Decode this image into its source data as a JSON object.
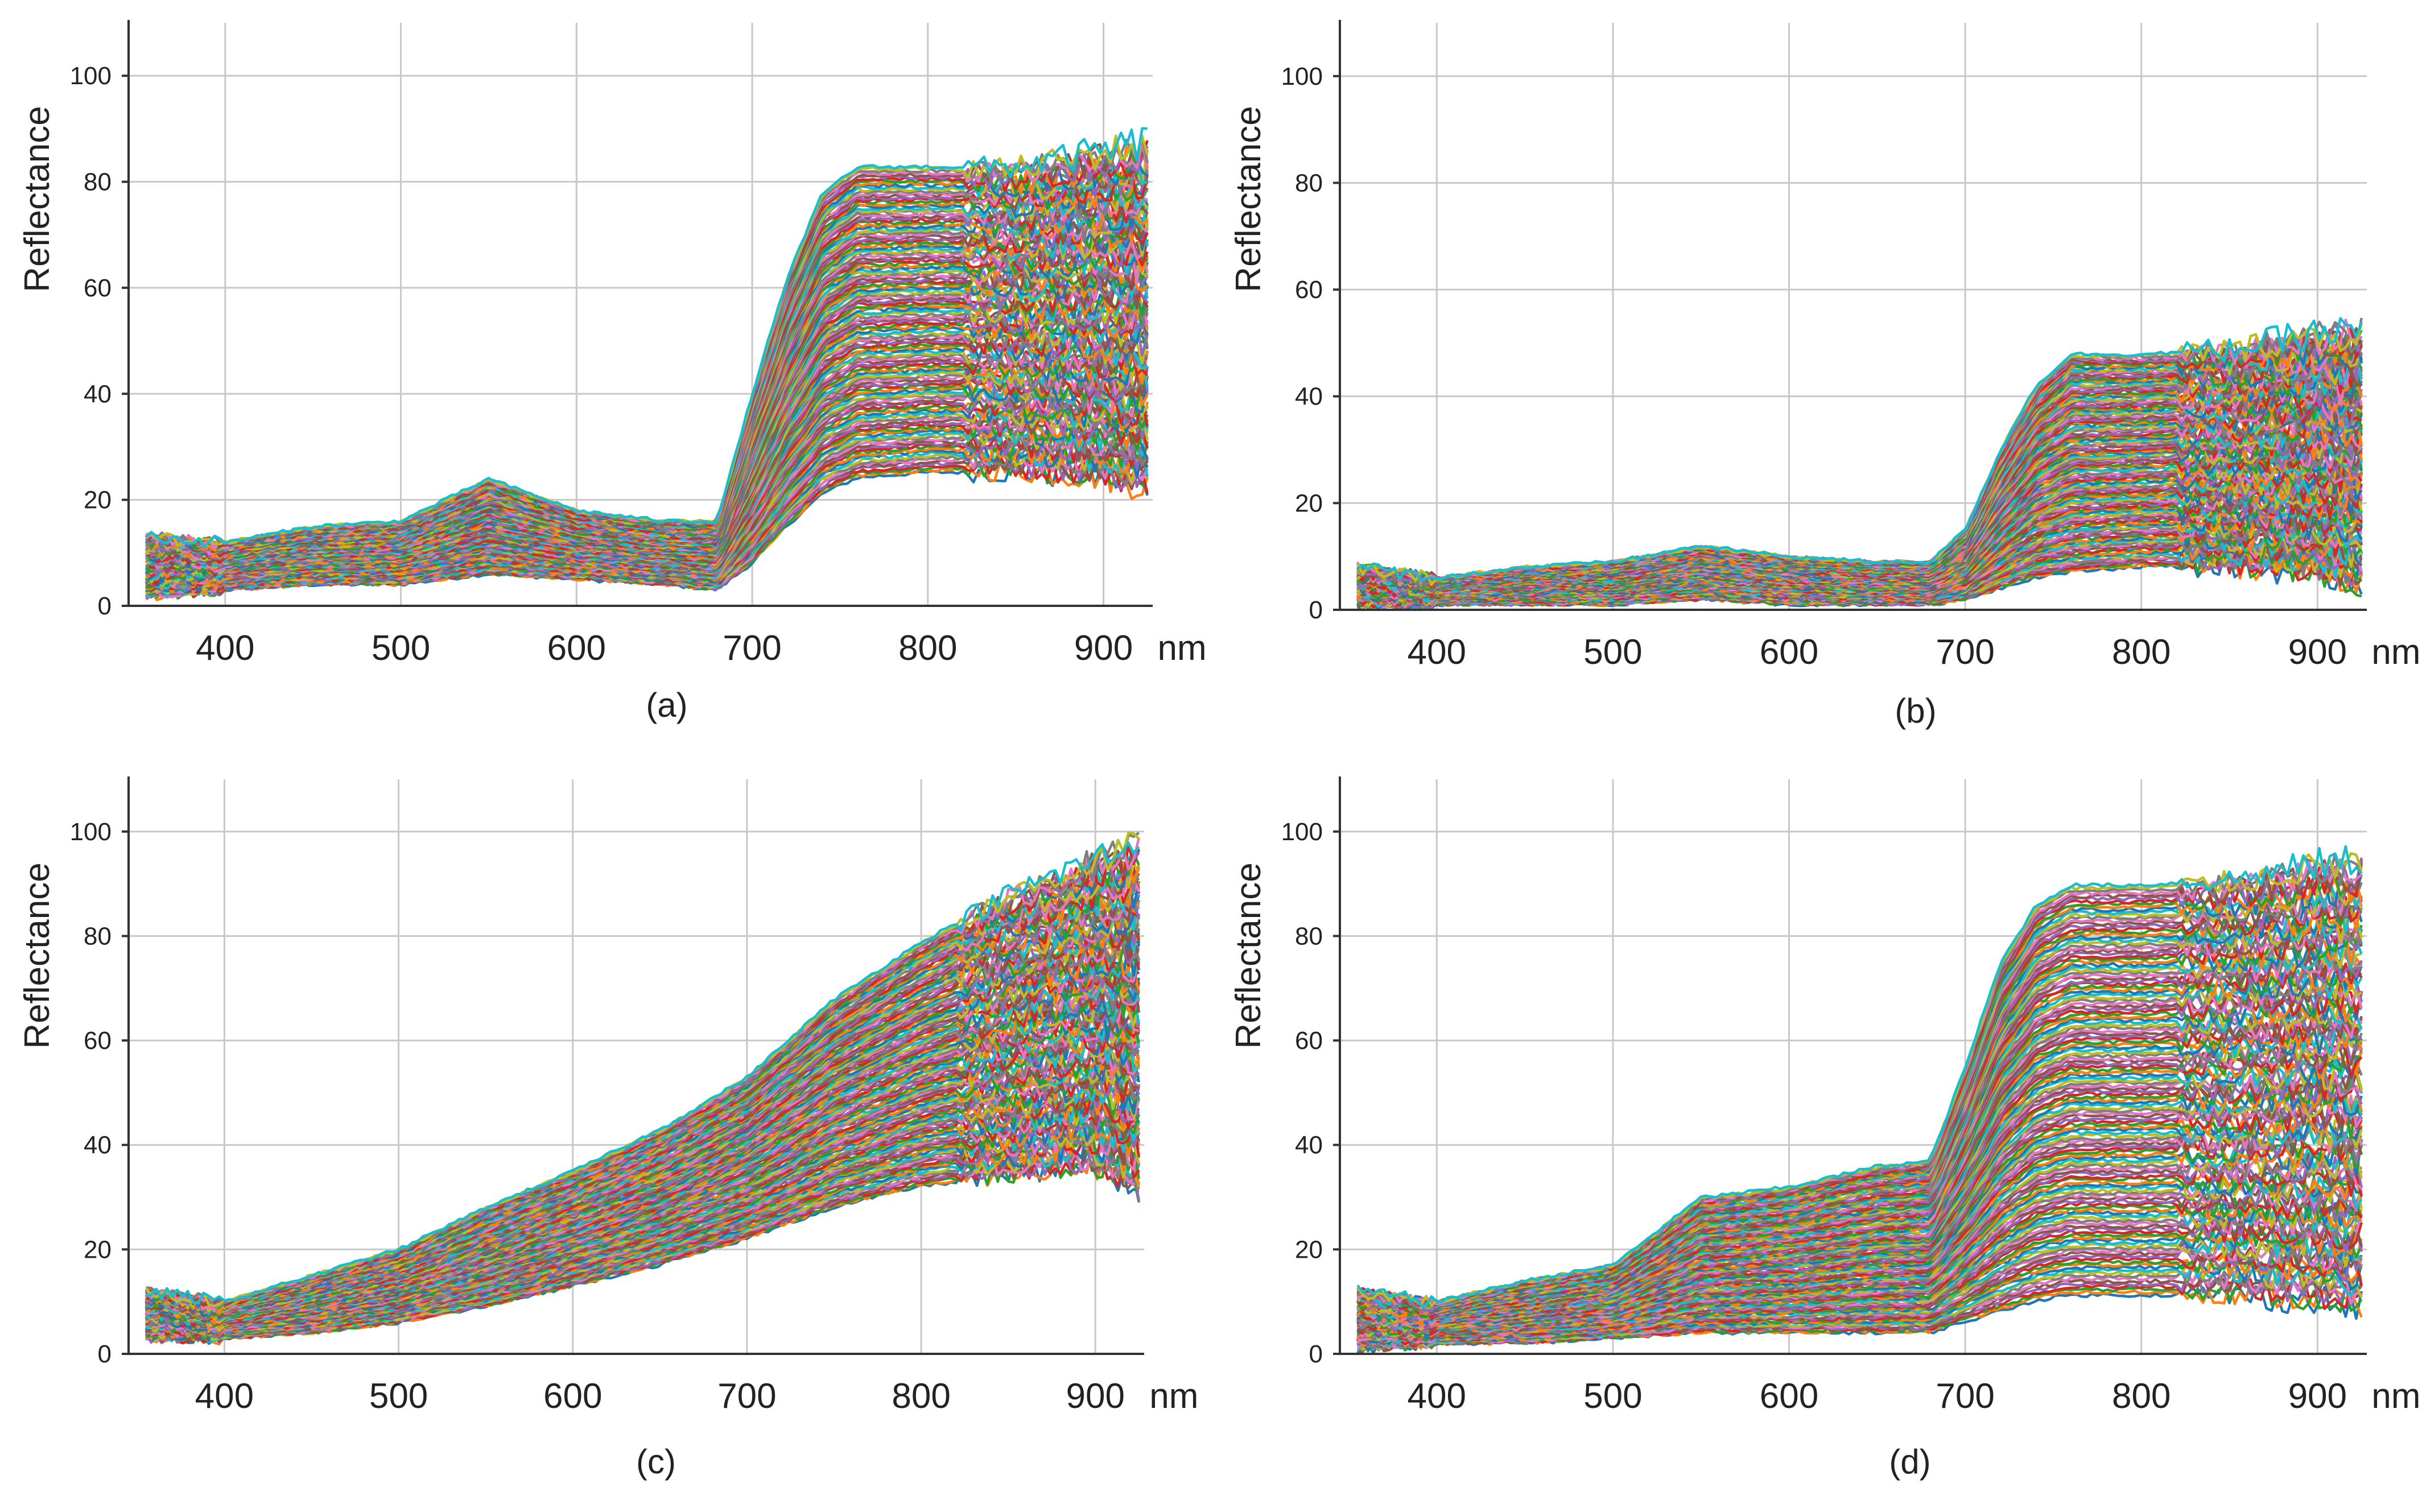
{
  "chart_data": [
    {
      "type": "line",
      "panel_label": "(a)",
      "ylabel": "Reflectance",
      "xunit": "nm",
      "xlim": [
        345,
        928
      ],
      "ylim": [
        0,
        110
      ],
      "xticks": [
        400,
        500,
        600,
        700,
        800,
        900
      ],
      "yticks": [
        0,
        20,
        40,
        60,
        80,
        100
      ],
      "grid": true,
      "num_series": 150,
      "description_of_series": "vegetation-like spectra: shallow green bump near 550 nm, red edge 690-750 nm, NIR plateau",
      "envelope": {
        "x": [
          355,
          400,
          450,
          500,
          550,
          600,
          650,
          680,
          700,
          720,
          740,
          760,
          800,
          850,
          900,
          928
        ],
        "low": [
          2,
          3,
          4,
          4,
          6,
          5,
          4,
          3,
          8,
          15,
          21,
          24,
          25,
          25,
          24,
          22
        ],
        "high": [
          13,
          12,
          15,
          16,
          24,
          18,
          16,
          16,
          40,
          62,
          78,
          83,
          83,
          83,
          86,
          88
        ]
      }
    },
    {
      "type": "line",
      "panel_label": "(b)",
      "ylabel": "Reflectance",
      "xunit": "nm",
      "xlim": [
        345,
        928
      ],
      "ylim": [
        0,
        110
      ],
      "xticks": [
        400,
        500,
        600,
        700,
        800,
        900
      ],
      "yticks": [
        0,
        20,
        40,
        60,
        80,
        100
      ],
      "grid": true,
      "num_series": 150,
      "description_of_series": "low-reflectance spectra with small green bump and moderate NIR plateau",
      "envelope": {
        "x": [
          355,
          400,
          450,
          500,
          550,
          600,
          650,
          680,
          700,
          720,
          740,
          760,
          800,
          850,
          900,
          928
        ],
        "low": [
          1,
          1,
          1,
          1,
          2,
          1,
          1,
          1,
          2,
          4,
          6,
          7,
          8,
          8,
          7,
          5
        ],
        "high": [
          8,
          6,
          8,
          9,
          12,
          10,
          9,
          9,
          15,
          30,
          42,
          48,
          48,
          49,
          52,
          52
        ]
      }
    },
    {
      "type": "line",
      "panel_label": "(c)",
      "ylabel": "Reflectance",
      "xunit": "nm",
      "xlim": [
        345,
        928
      ],
      "ylim": [
        0,
        110
      ],
      "xticks": [
        400,
        500,
        600,
        700,
        800,
        900
      ],
      "yticks": [
        0,
        20,
        40,
        60,
        80,
        100
      ],
      "grid": true,
      "num_series": 150,
      "description_of_series": "monotonically increasing soil-like spectra",
      "envelope": {
        "x": [
          355,
          400,
          450,
          500,
          550,
          600,
          650,
          700,
          750,
          800,
          850,
          900,
          928
        ],
        "low": [
          3,
          3,
          4,
          6,
          9,
          13,
          17,
          22,
          28,
          32,
          34,
          36,
          30
        ],
        "high": [
          12,
          10,
          15,
          20,
          28,
          35,
          43,
          53,
          68,
          79,
          88,
          95,
          98
        ]
      }
    },
    {
      "type": "line",
      "panel_label": "(d)",
      "ylabel": "Reflectance",
      "xunit": "nm",
      "xlim": [
        345,
        928
      ],
      "ylim": [
        0,
        110
      ],
      "xticks": [
        400,
        500,
        600,
        700,
        800,
        900
      ],
      "yticks": [
        0,
        20,
        40,
        60,
        80,
        100
      ],
      "grid": true,
      "num_series": 150,
      "description_of_series": "mixed spectra: pronounced green bump, red edge, wide NIR spread",
      "envelope": {
        "x": [
          355,
          400,
          450,
          500,
          550,
          600,
          650,
          680,
          700,
          720,
          740,
          760,
          800,
          850,
          900,
          928
        ],
        "low": [
          1,
          2,
          2,
          3,
          4,
          4,
          4,
          4,
          6,
          8,
          10,
          11,
          11,
          11,
          10,
          8
        ],
        "high": [
          12,
          10,
          14,
          17,
          30,
          32,
          36,
          37,
          55,
          75,
          86,
          90,
          90,
          91,
          94,
          95
        ]
      }
    }
  ]
}
